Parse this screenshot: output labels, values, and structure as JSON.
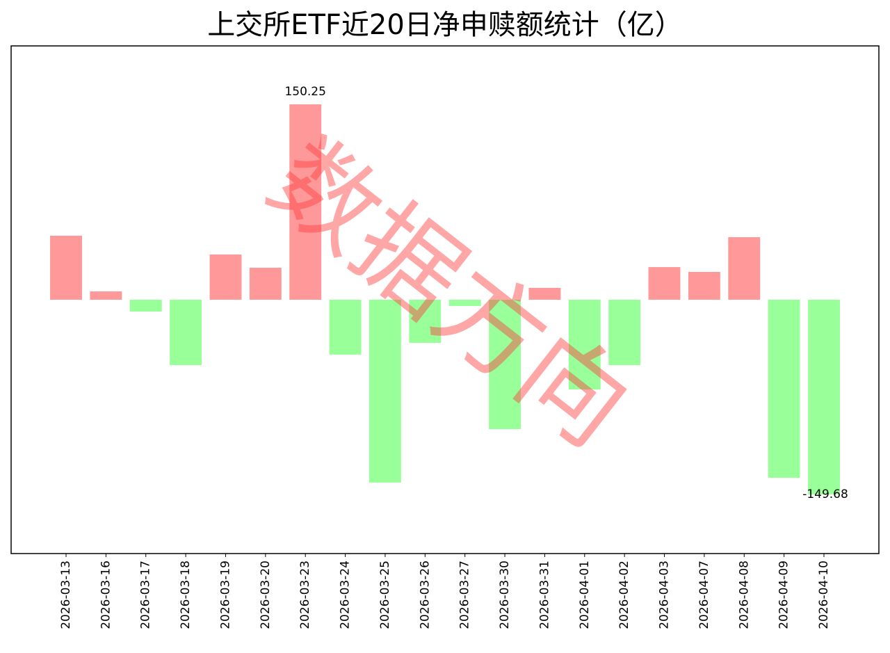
{
  "chart_data": {
    "type": "bar",
    "title": "上交所ETF近20日净申赎额统计（亿）",
    "watermark": "数据方向",
    "categories": [
      "2026-03-13",
      "2026-03-16",
      "2026-03-17",
      "2026-03-18",
      "2026-03-19",
      "2026-03-20",
      "2026-03-23",
      "2026-03-24",
      "2026-03-25",
      "2026-03-26",
      "2026-03-27",
      "2026-03-30",
      "2026-03-31",
      "2026-04-01",
      "2026-04-02",
      "2026-04-03",
      "2026-04-07",
      "2026-04-08",
      "2026-04-09",
      "2026-04-10"
    ],
    "values": [
      49.2,
      6.4,
      -9.1,
      -50.3,
      34.8,
      24.6,
      150.25,
      -42.2,
      -140.6,
      -33.2,
      -4.8,
      -99.5,
      9.1,
      -69.0,
      -50.3,
      25.1,
      21.4,
      48.1,
      -136.9,
      -149.68
    ],
    "value_labels": [
      null,
      null,
      null,
      null,
      null,
      null,
      "150.25",
      null,
      null,
      null,
      null,
      null,
      null,
      null,
      null,
      null,
      null,
      null,
      null,
      "-149.68"
    ],
    "positive_color": "#ff9999",
    "negative_color": "#99ff99",
    "ylim": [
      -195.2,
      195.2
    ]
  }
}
